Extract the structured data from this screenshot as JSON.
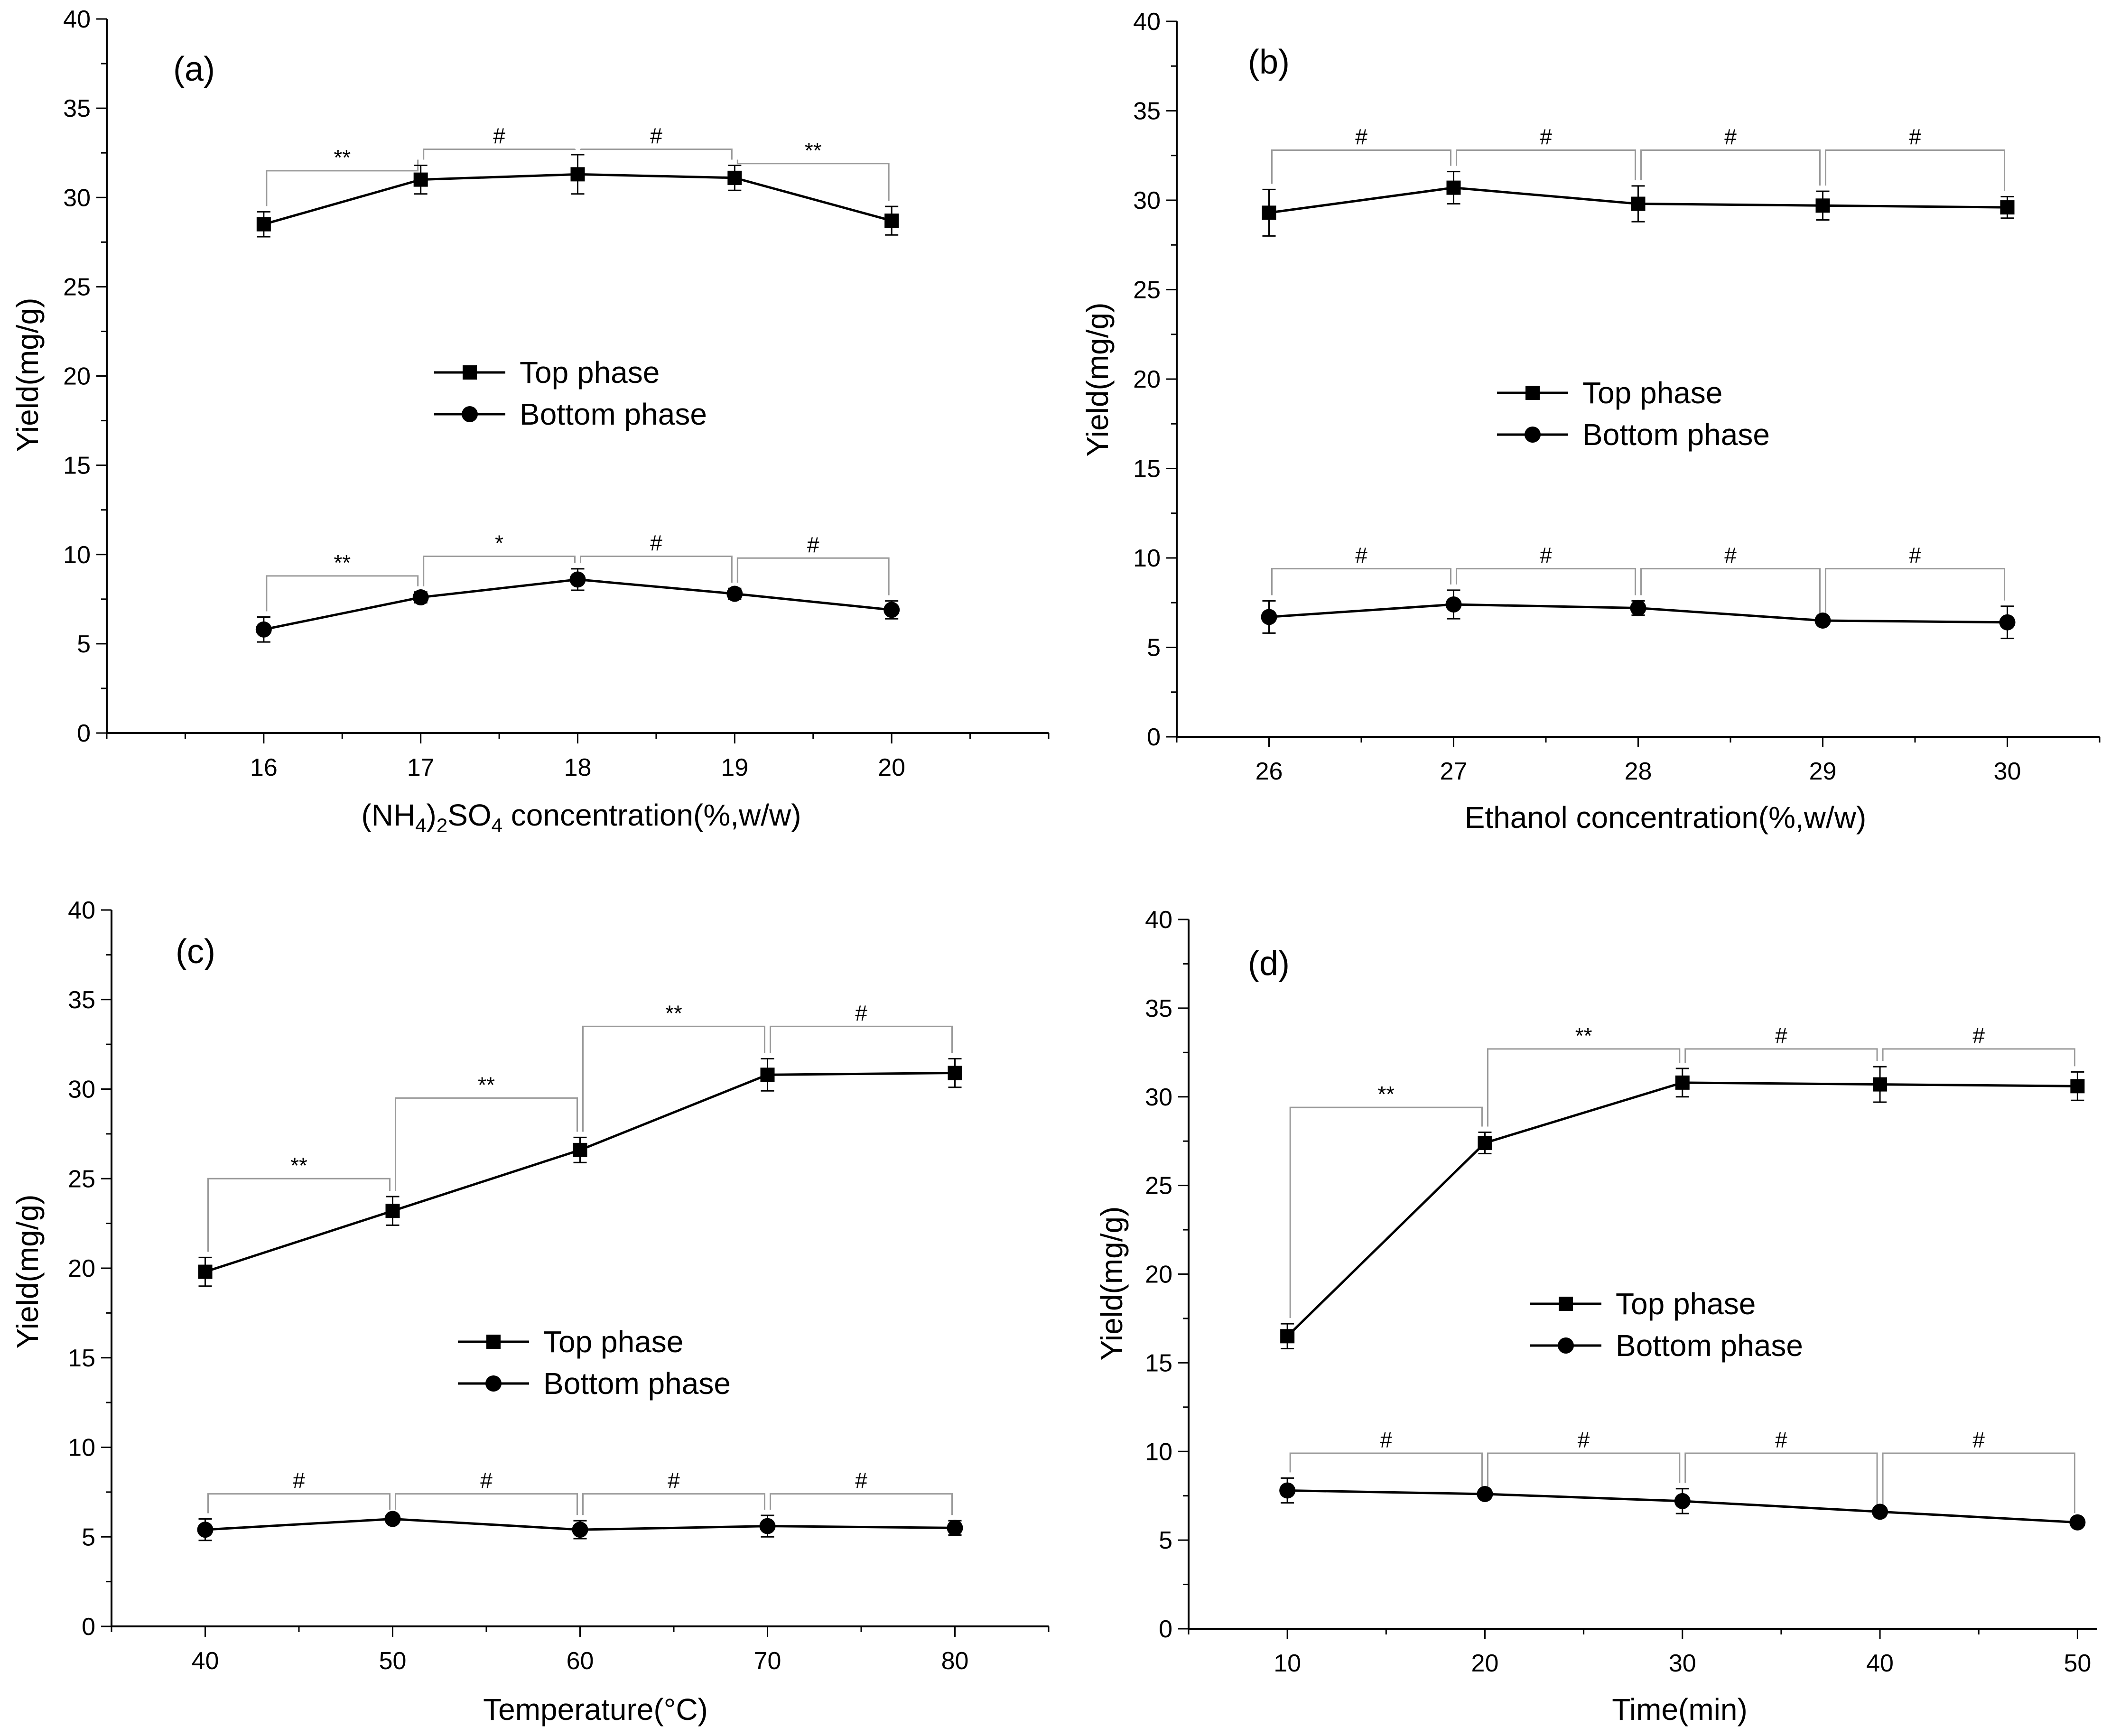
{
  "chart_data": [
    {
      "type": "line",
      "panel_label": "(a)",
      "xlabel_prefix": "(NH",
      "xlabel_sub1": "4",
      "xlabel_mid": ")",
      "xlabel_sub2": "2",
      "xlabel_mid2": "SO",
      "xlabel_sub3": "4",
      "xlabel_suffix": " concentration(%,w/w)",
      "ylabel": "Yield(mg/g)",
      "x": [
        16,
        17,
        18,
        19,
        20
      ],
      "x_ticks": [
        "16",
        "17",
        "18",
        "19",
        "20"
      ],
      "xlim": [
        15,
        21
      ],
      "ylim": [
        0,
        40
      ],
      "y_ticks": [
        "0",
        "5",
        "10",
        "15",
        "20",
        "25",
        "30",
        "35",
        "40"
      ],
      "legend_position": "center",
      "series": [
        {
          "name": "Top phase",
          "marker": "square",
          "values": [
            28.5,
            31.0,
            31.3,
            31.1,
            28.7
          ],
          "errors": [
            0.7,
            0.8,
            1.1,
            0.7,
            0.8
          ],
          "significance": [
            "**",
            "#",
            "#",
            "**"
          ],
          "bracket_top": [
            31.5,
            32.7,
            32.7,
            31.9
          ]
        },
        {
          "name": "Bottom phase",
          "marker": "circle",
          "values": [
            5.8,
            7.6,
            8.6,
            7.8,
            6.9
          ],
          "errors": [
            0.7,
            0.3,
            0.6,
            0.3,
            0.5
          ],
          "significance": [
            "**",
            "*",
            "#",
            "#"
          ],
          "bracket_top": [
            8.8,
            9.9,
            9.9,
            9.8
          ]
        }
      ]
    },
    {
      "type": "line",
      "panel_label": "(b)",
      "xlabel": "Ethanol concentration(%,w/w)",
      "ylabel": "Yield(mg/g)",
      "x": [
        26,
        27,
        28,
        29,
        30
      ],
      "x_ticks": [
        "26",
        "27",
        "28",
        "29",
        "30"
      ],
      "xlim": [
        25.5,
        30.5
      ],
      "ylim": [
        0,
        40
      ],
      "y_ticks": [
        "0",
        "5",
        "10",
        "15",
        "20",
        "25",
        "30",
        "35",
        "40"
      ],
      "legend_position": "center",
      "series": [
        {
          "name": "Top phase",
          "marker": "square",
          "values": [
            29.3,
            30.7,
            29.8,
            29.7,
            29.6
          ],
          "errors": [
            1.3,
            0.9,
            1.0,
            0.8,
            0.6
          ],
          "significance": [
            "#",
            "#",
            "#",
            "#"
          ],
          "bracket_top": [
            32.8,
            32.8,
            32.8,
            32.8
          ]
        },
        {
          "name": "Bottom phase",
          "marker": "circle",
          "values": [
            6.7,
            7.4,
            7.2,
            6.5,
            6.4
          ],
          "errors": [
            0.9,
            0.8,
            0.4,
            0.1,
            0.9
          ],
          "significance": [
            "#",
            "#",
            "#",
            "#"
          ],
          "bracket_top": [
            9.4,
            9.4,
            9.4,
            9.4
          ]
        }
      ]
    },
    {
      "type": "line",
      "panel_label": "(c)",
      "xlabel": "Temperature(°C)",
      "ylabel": "Yield(mg/g)",
      "x": [
        40,
        50,
        60,
        70,
        80
      ],
      "x_ticks": [
        "40",
        "50",
        "60",
        "70",
        "80"
      ],
      "xlim": [
        35,
        85
      ],
      "ylim": [
        0,
        40
      ],
      "y_ticks": [
        "0",
        "5",
        "10",
        "15",
        "20",
        "25",
        "30",
        "35",
        "40"
      ],
      "legend_position": "center-right",
      "series": [
        {
          "name": "Top phase",
          "marker": "square",
          "values": [
            19.8,
            23.2,
            26.6,
            30.8,
            30.9
          ],
          "errors": [
            0.8,
            0.8,
            0.7,
            0.9,
            0.8
          ],
          "significance": [
            "**",
            "**",
            "**",
            "#"
          ],
          "bracket_top": [
            25.0,
            29.5,
            33.5,
            33.5
          ]
        },
        {
          "name": "Bottom phase",
          "marker": "circle",
          "values": [
            5.4,
            6.0,
            5.4,
            5.6,
            5.5
          ],
          "errors": [
            0.6,
            0.2,
            0.5,
            0.6,
            0.4
          ],
          "significance": [
            "#",
            "#",
            "#",
            "#"
          ],
          "bracket_top": [
            7.4,
            7.4,
            7.4,
            7.4
          ]
        }
      ]
    },
    {
      "type": "line",
      "panel_label": "(d)",
      "xlabel": "Time(min)",
      "ylabel": "Yield(mg/g)",
      "x": [
        10,
        20,
        30,
        40,
        50
      ],
      "x_ticks": [
        "10",
        "20",
        "30",
        "40",
        "50"
      ],
      "xlim": [
        5,
        51
      ],
      "ylim": [
        0,
        40
      ],
      "y_ticks": [
        "0",
        "5",
        "10",
        "15",
        "20",
        "25",
        "30",
        "35",
        "40"
      ],
      "legend_position": "center-right",
      "series": [
        {
          "name": "Top phase",
          "marker": "square",
          "values": [
            16.5,
            27.4,
            30.8,
            30.7,
            30.6
          ],
          "errors": [
            0.7,
            0.6,
            0.8,
            1.0,
            0.8
          ],
          "significance": [
            "**",
            "**",
            "#",
            "#"
          ],
          "bracket_top": [
            29.4,
            32.7,
            32.7,
            32.7
          ]
        },
        {
          "name": "Bottom phase",
          "marker": "circle",
          "values": [
            7.8,
            7.6,
            7.2,
            6.6,
            6.0
          ],
          "errors": [
            0.7,
            0.1,
            0.7,
            0.1,
            0.2
          ],
          "significance": [
            "#",
            "#",
            "#",
            "#"
          ],
          "bracket_top": [
            9.9,
            9.9,
            9.9,
            9.9
          ]
        }
      ]
    }
  ]
}
